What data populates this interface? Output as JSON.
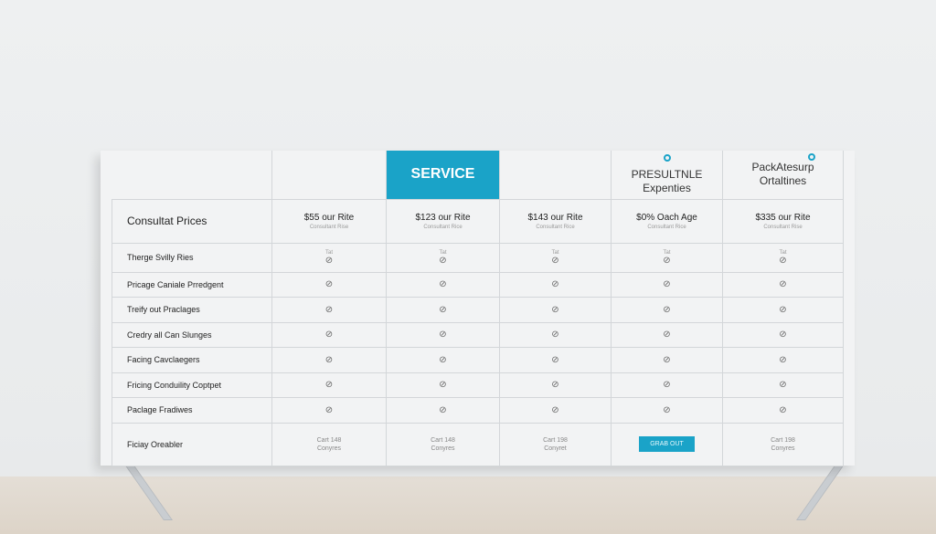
{
  "header": {
    "service": "SERVICE",
    "col4": [
      "PRESULTNLE",
      "Expenties"
    ],
    "col5": [
      "PackAtesurp",
      "Ortaltines"
    ]
  },
  "price_row": {
    "label": "Consultat Prices",
    "prices": [
      {
        "price": "$55 our Rite",
        "sub": "Consultant Rise"
      },
      {
        "price": "$123 our Rite",
        "sub": "Consultant Rice"
      },
      {
        "price": "$143 our Rite",
        "sub": "Consultant Rice"
      },
      {
        "price": "$0% Oach Age",
        "sub": "Consultant Rice"
      },
      {
        "price": "$335 our Rite",
        "sub": "Consultant Rise"
      }
    ]
  },
  "first_row_small": "Tat",
  "rows": [
    "Therge Svilly Ries",
    "Pricage Caniale Prredgent",
    "Treify out Praclages",
    "Credry all Can Slunges",
    "Facing Cavclaegers",
    "Fricing Conduility Coptpet",
    "Paclage Fradiwes"
  ],
  "check_icon": "check-circle-icon",
  "footer": {
    "label": "Ficiay Oreabler",
    "cells": [
      [
        "Cart 148",
        "Conyres"
      ],
      [
        "Cart 148",
        "Conyres"
      ],
      [
        "Cart 198",
        "Conyret"
      ],
      null,
      [
        "Cart 198",
        "Conyres"
      ]
    ],
    "button": "GRAB OUT"
  },
  "colors": {
    "accent": "#1aa3c8"
  }
}
